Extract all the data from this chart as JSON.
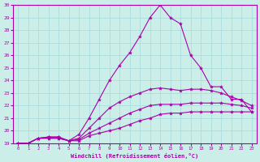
{
  "xlabel": "Windchill (Refroidissement éolien,°C)",
  "background_color": "#cceee8",
  "grid_color": "#aadddd",
  "line_color": "#aa00aa",
  "xlim": [
    -0.5,
    23.5
  ],
  "ylim": [
    19,
    30
  ],
  "yticks": [
    19,
    20,
    21,
    22,
    23,
    24,
    25,
    26,
    27,
    28,
    29,
    30
  ],
  "xticks": [
    0,
    1,
    2,
    3,
    4,
    5,
    6,
    7,
    8,
    9,
    10,
    11,
    12,
    13,
    14,
    15,
    16,
    17,
    18,
    19,
    20,
    21,
    22,
    23
  ],
  "lines": [
    {
      "x": [
        0,
        1,
        2,
        3,
        4,
        5,
        6,
        7,
        8,
        9,
        10,
        11,
        12,
        13,
        14,
        15,
        16,
        17,
        18,
        19,
        20,
        21,
        22,
        23
      ],
      "y": [
        19,
        19,
        19.4,
        19.4,
        19.4,
        19.2,
        19.2,
        19.6,
        19.8,
        20.0,
        20.2,
        20.5,
        20.8,
        21.0,
        21.3,
        21.4,
        21.4,
        21.5,
        21.5,
        21.5,
        21.5,
        21.5,
        21.5,
        21.5
      ],
      "marker": true
    },
    {
      "x": [
        0,
        1,
        2,
        3,
        4,
        5,
        6,
        7,
        8,
        9,
        10,
        11,
        12,
        13,
        14,
        15,
        16,
        17,
        18,
        19,
        20,
        21,
        22,
        23
      ],
      "y": [
        19,
        19,
        19.4,
        19.4,
        19.4,
        19.2,
        19.3,
        19.8,
        20.2,
        20.6,
        21.0,
        21.4,
        21.7,
        22.0,
        22.1,
        22.1,
        22.1,
        22.2,
        22.2,
        22.2,
        22.2,
        22.1,
        22.0,
        21.8
      ],
      "marker": true
    },
    {
      "x": [
        0,
        1,
        2,
        3,
        4,
        5,
        6,
        7,
        8,
        9,
        10,
        11,
        12,
        13,
        14,
        15,
        16,
        17,
        18,
        19,
        20,
        21,
        22,
        23
      ],
      "y": [
        19,
        19,
        19.4,
        19.5,
        19.5,
        19.2,
        19.4,
        20.2,
        21.0,
        21.8,
        22.3,
        22.7,
        23.0,
        23.3,
        23.4,
        23.3,
        23.2,
        23.3,
        23.3,
        23.2,
        23.0,
        22.7,
        22.4,
        22.0
      ],
      "marker": true
    },
    {
      "x": [
        0,
        1,
        2,
        3,
        4,
        5,
        6,
        7,
        8,
        9,
        10,
        11,
        12,
        13,
        14,
        15,
        16,
        17,
        18,
        19,
        20,
        21,
        22,
        23
      ],
      "y": [
        19,
        19,
        19.4,
        19.5,
        19.5,
        19.2,
        19.7,
        21.0,
        22.5,
        24.0,
        25.2,
        26.2,
        27.5,
        29.0,
        30.0,
        29.0,
        28.5,
        26.0,
        25.0,
        23.5,
        23.5,
        22.5,
        22.5,
        21.5
      ],
      "marker": true
    }
  ]
}
